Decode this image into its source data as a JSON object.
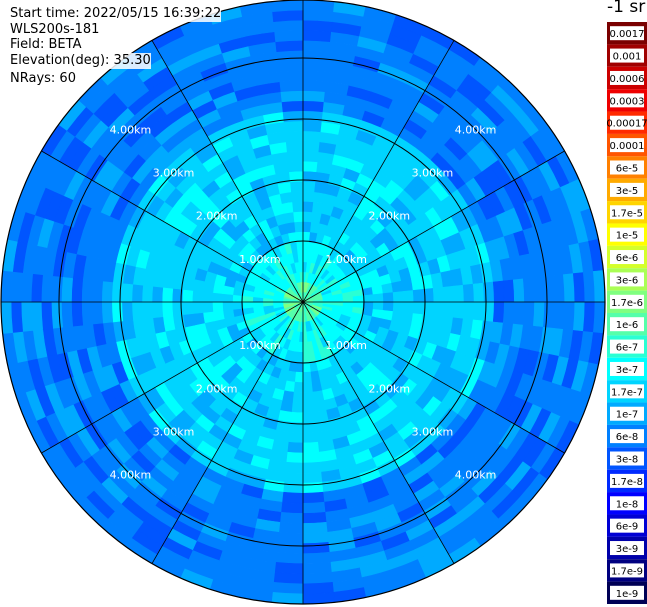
{
  "header": {
    "start_time": "Start time: 2022/05/15 16:39:22",
    "instrument": "WLS200s-181",
    "field": "Field: BETA",
    "elevation": "Elevation(deg): 35.30",
    "nrays": "NRays: 60"
  },
  "colorbar": {
    "title": "-1 sr",
    "labels": [
      "0.0017",
      "0.001",
      "0.0006",
      "0.0003",
      "0.00017",
      "0.0001",
      "6e-5",
      "3e-5",
      "1.7e-5",
      "1e-5",
      "6e-6",
      "3e-6",
      "1.7e-6",
      "1e-6",
      "6e-7",
      "3e-7",
      "1.7e-7",
      "1e-7",
      "6e-8",
      "3e-8",
      "1.7e-8",
      "1e-8",
      "6e-9",
      "3e-9",
      "1.7e-9",
      "1e-9"
    ],
    "colors": [
      "#7a0000",
      "#a00000",
      "#cc0000",
      "#ee0000",
      "#ff2a00",
      "#ff5500",
      "#ff8000",
      "#ffaa00",
      "#ffd400",
      "#ffff00",
      "#d4ff2a",
      "#aaff55",
      "#80ff80",
      "#55ffaa",
      "#2affd4",
      "#00ffff",
      "#00d4ff",
      "#00aaff",
      "#0080ff",
      "#0055ff",
      "#002aff",
      "#0000ff",
      "#0000d4",
      "#0000aa",
      "#000080",
      "#000055"
    ]
  },
  "chart_data": {
    "type": "polar-ppi",
    "field": "BETA",
    "elevation_deg": 35.3,
    "n_rays": 60,
    "range_rings_km": [
      1.0,
      2.0,
      3.0,
      4.0
    ],
    "ring_labels": [
      "1.00km",
      "2.00km",
      "3.00km",
      "4.00km"
    ],
    "max_range_km": 4.95,
    "spokes_deg": [
      0,
      30,
      60,
      90,
      120,
      150,
      180,
      210,
      240,
      270,
      300,
      330
    ],
    "dominant_values_by_range": [
      {
        "range_km": [
          0.0,
          0.35
        ],
        "beta": "1e-6"
      },
      {
        "range_km": [
          0.35,
          1.0
        ],
        "beta": "3e-7"
      },
      {
        "range_km": [
          1.0,
          3.2
        ],
        "beta": "1.7e-7"
      },
      {
        "range_km": [
          3.2,
          4.95
        ],
        "beta": "6e-8"
      }
    ],
    "color_scale": "logarithmic, 1e-9 to 0.0017 sr-1"
  }
}
